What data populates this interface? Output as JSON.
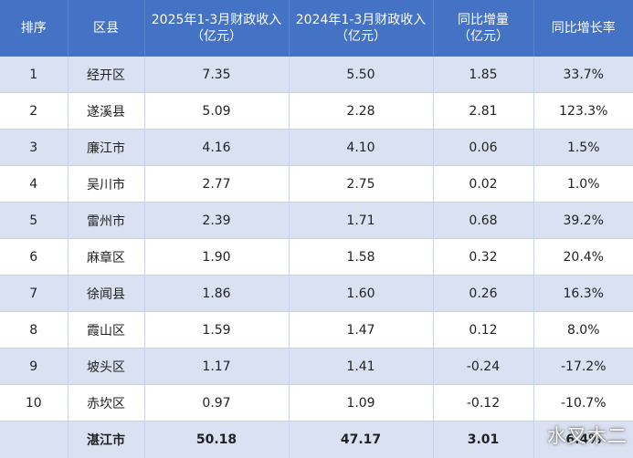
{
  "headers": [
    "排序",
    "区县",
    "2025年1-3月财政收入\n（亿元）",
    "2024年1-3月财政收入\n（亿元）",
    "同比增量\n（亿元）",
    "同比增长率"
  ],
  "rows": [
    [
      "1",
      "经开区",
      "7.35",
      "5.50",
      "1.85",
      "33.7%"
    ],
    [
      "2",
      "遂溪县",
      "5.09",
      "2.28",
      "2.81",
      "123.3%"
    ],
    [
      "3",
      "廉江市",
      "4.16",
      "4.10",
      "0.06",
      "1.5%"
    ],
    [
      "4",
      "吴川市",
      "2.77",
      "2.75",
      "0.02",
      "1.0%"
    ],
    [
      "5",
      "雷州市",
      "2.39",
      "1.71",
      "0.68",
      "39.2%"
    ],
    [
      "6",
      "麻章区",
      "1.90",
      "1.58",
      "0.32",
      "20.4%"
    ],
    [
      "7",
      "徐闻县",
      "1.86",
      "1.60",
      "0.26",
      "16.3%"
    ],
    [
      "8",
      "霞山区",
      "1.59",
      "1.47",
      "0.12",
      "8.0%"
    ],
    [
      "9",
      "坡头区",
      "1.17",
      "1.41",
      "-0.24",
      "-17.2%"
    ],
    [
      "10",
      "赤坎区",
      "0.97",
      "1.09",
      "-0.12",
      "-10.7%"
    ]
  ],
  "total": [
    "",
    "湛江市",
    "50.18",
    "47.17",
    "3.01",
    "6.4%"
  ],
  "watermark": "水叉木二",
  "colors": {
    "header_bg": "#4472c4",
    "band_bg": "#d9e1f2",
    "plain_bg": "#ffffff"
  }
}
